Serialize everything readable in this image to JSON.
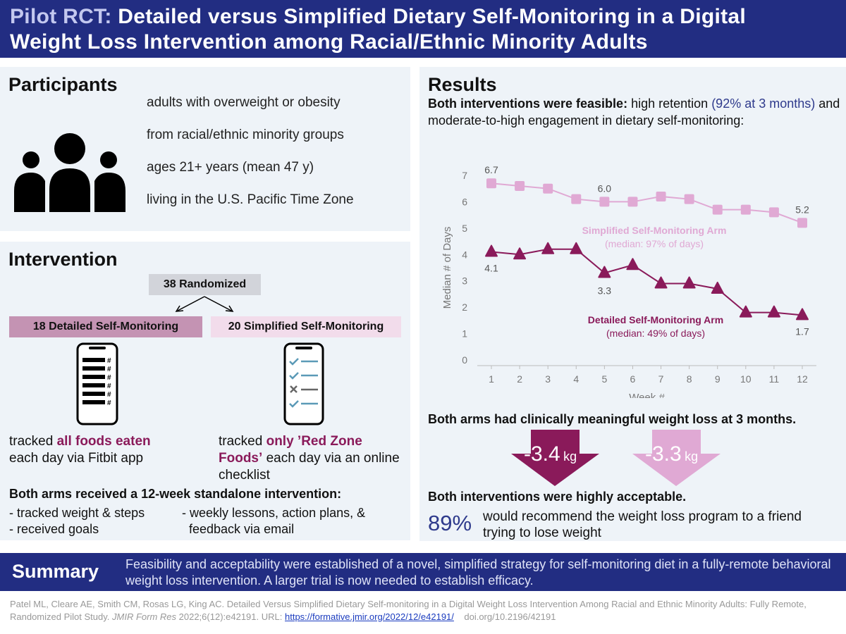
{
  "title": {
    "accent": "Pilot RCT:",
    "line1_rest": "Detailed versus Simplified Dietary Self-Monitoring in a Digital",
    "line2": "Weight Loss Intervention among Racial/Ethnic Minority Adults"
  },
  "participants": {
    "heading": "Participants",
    "items": [
      "adults with overweight or obesity",
      "from racial/ethnic minority groups",
      "ages 21+ years (mean 47 y)",
      "living in the U.S. Pacific Time Zone"
    ]
  },
  "intervention": {
    "heading": "Intervention",
    "randomized_n": "38",
    "randomized_label": "Randomized",
    "detailed_n": "18",
    "detailed_label": "Detailed Self-Monitoring",
    "simplified_n": "20",
    "simplified_label": "Simplified Self-Monitoring",
    "detailed_pre": "tracked",
    "detailed_bold": "all foods eaten",
    "detailed_post": "each day via Fitbit app",
    "simplified_pre": "tracked",
    "simplified_bold": "only ’Red Zone Foods’",
    "simplified_post": "each day via an online checklist",
    "both_heading": "Both arms received a 12-week standalone intervention:",
    "bullets_left": [
      "- tracked weight & steps",
      "- received goals"
    ],
    "bullets_right": [
      "- weekly lessons, action plans, &",
      "feedback via email"
    ]
  },
  "results": {
    "heading": "Results",
    "feasible_bold": "Both interventions were feasible:",
    "feasible_mid": "high retention",
    "feasible_blue": "(92% at 3 months)",
    "feasible_end": "and moderate-to-high engagement in dietary self-monitoring:",
    "weight_heading": "Both arms had clinically meaningful weight loss at 3 months.",
    "weight_detailed": "-3.4",
    "weight_simplified": "-3.3",
    "weight_unit": "kg",
    "accept_heading": "Both interventions were highly acceptable.",
    "recommend_pct": "89%",
    "recommend_text": "would recommend the weight loss program to a friend trying to lose weight"
  },
  "chart_data": {
    "type": "line",
    "xlabel": "Week #",
    "ylabel": "Median # of Days",
    "x": [
      1,
      2,
      3,
      4,
      5,
      6,
      7,
      8,
      9,
      10,
      11,
      12
    ],
    "ylim": [
      0,
      7
    ],
    "yticks": [
      0,
      1,
      2,
      3,
      4,
      5,
      6,
      7
    ],
    "series": [
      {
        "name": "Simplified Self-Monitoring Arm",
        "note": "(median: 97% of days)",
        "color": "#e0a9d4",
        "marker": "square",
        "values": [
          6.7,
          6.6,
          6.5,
          6.1,
          6.0,
          6.0,
          6.2,
          6.1,
          5.7,
          5.7,
          5.6,
          5.2
        ]
      },
      {
        "name": "Detailed Self-Monitoring Arm",
        "note": "(median: 49% of days)",
        "color": "#8a1a5a",
        "marker": "triangle",
        "values": [
          4.1,
          4.0,
          4.2,
          4.2,
          3.3,
          3.6,
          2.9,
          2.9,
          2.7,
          1.8,
          1.8,
          1.7
        ]
      }
    ],
    "annotations": [
      "6.7",
      "6.0",
      "5.2",
      "4.1",
      "3.3",
      "1.7"
    ]
  },
  "summary": {
    "heading": "Summary",
    "text": "Feasibility and acceptability were established of a novel, simplified strategy for self-monitoring diet in a fully-remote behavioral weight loss intervention. A larger trial is now needed to establish efficacy."
  },
  "citation": {
    "authors": "Patel ML, Cleare AE, Smith CM, Rosas LG, King AC. Detailed Versus Simplified Dietary Self-monitoring in a Digital Weight Loss Intervention Among Racial and Ethnic Minority Adults: Fully Remote, Randomized Pilot Study.",
    "journal": "JMIR Form Res",
    "details": "2022;6(12):e42191. URL:",
    "url": "https://formative.jmir.org/2022/12/e42191/",
    "doi": "doi.org/10.2196/42191"
  },
  "colors": {
    "navy": "#222d82",
    "panel": "#eef3f8",
    "detailed": "#8a1a5a",
    "simplified": "#e0a9d4",
    "blue_text": "#2e3a8c"
  }
}
